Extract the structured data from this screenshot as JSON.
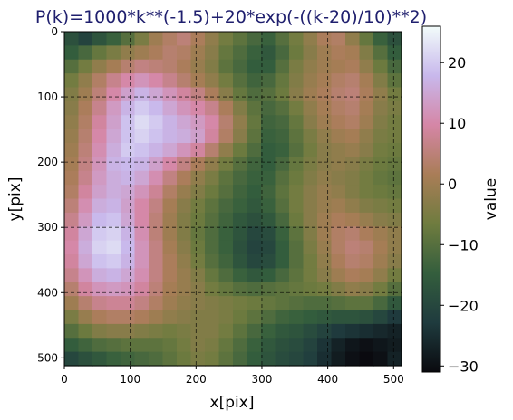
{
  "chart_data": {
    "type": "heatmap",
    "title": "P(k)=1000*k**(-1.5)+20*exp(-((k-20)/10)**2)",
    "xlabel": "x[pix]",
    "ylabel": "y[pix]",
    "xlim": [
      0,
      512
    ],
    "ylim": [
      512,
      0
    ],
    "x_ticks": [
      0,
      100,
      200,
      300,
      400,
      500
    ],
    "y_ticks": [
      0,
      100,
      200,
      300,
      400,
      500
    ],
    "grid": true,
    "colormap": "cubehelix-like",
    "colorbar": {
      "label": "value",
      "range": [
        -31,
        26
      ],
      "ticks": [
        -30,
        -20,
        -10,
        0,
        10,
        20
      ],
      "tick_labels": [
        "−30",
        "−20",
        "−10",
        "0",
        "10",
        "20"
      ],
      "colors": [
        "#0a0a0f",
        "#1f3b3e",
        "#345e3d",
        "#6f7c3f",
        "#a97d57",
        "#d586a6",
        "#c8b8ec",
        "#f2fcfa"
      ]
    },
    "grid_size": [
      24,
      24
    ],
    "values": [
      [
        -18,
        -21,
        -17,
        -14,
        -10,
        -5,
        0,
        3,
        5,
        2,
        -2,
        -6,
        -9,
        -12,
        -14,
        -10,
        -6,
        -2,
        2,
        3,
        -2,
        -8,
        -14,
        -18
      ],
      [
        -15,
        -12,
        -8,
        -5,
        -2,
        0,
        2,
        4,
        3,
        0,
        -3,
        -8,
        -11,
        -14,
        -16,
        -12,
        -7,
        -3,
        0,
        2,
        1,
        -4,
        -10,
        -15
      ],
      [
        -10,
        -6,
        -2,
        1,
        4,
        6,
        5,
        4,
        2,
        -1,
        -4,
        -9,
        -12,
        -15,
        -15,
        -10,
        -5,
        -2,
        0,
        1,
        2,
        -2,
        -7,
        -12
      ],
      [
        -6,
        -2,
        3,
        7,
        10,
        12,
        10,
        7,
        4,
        1,
        -2,
        -6,
        -10,
        -13,
        -12,
        -8,
        -4,
        -1,
        1,
        3,
        4,
        1,
        -4,
        -9
      ],
      [
        -4,
        0,
        5,
        10,
        14,
        17,
        15,
        12,
        9,
        6,
        2,
        -3,
        -8,
        -11,
        -10,
        -7,
        -3,
        0,
        2,
        4,
        5,
        2,
        -2,
        -6
      ],
      [
        -3,
        2,
        7,
        13,
        17,
        20,
        18,
        15,
        12,
        10,
        7,
        2,
        -4,
        -9,
        -12,
        -10,
        -6,
        -2,
        1,
        3,
        4,
        1,
        -3,
        -5
      ],
      [
        -2,
        3,
        9,
        14,
        19,
        22,
        20,
        17,
        15,
        13,
        10,
        4,
        -2,
        -8,
        -13,
        -12,
        -8,
        -3,
        0,
        2,
        3,
        0,
        -4,
        -6
      ],
      [
        -1,
        4,
        10,
        15,
        19,
        21,
        19,
        17,
        16,
        14,
        9,
        3,
        -3,
        -9,
        -14,
        -13,
        -9,
        -5,
        -2,
        0,
        1,
        -2,
        -5,
        -6
      ],
      [
        0,
        5,
        11,
        16,
        20,
        19,
        17,
        15,
        12,
        9,
        4,
        -2,
        -7,
        -11,
        -15,
        -14,
        -10,
        -6,
        -3,
        -2,
        -1,
        -3,
        -6,
        -7
      ],
      [
        1,
        6,
        12,
        17,
        18,
        17,
        14,
        10,
        6,
        2,
        -2,
        -6,
        -10,
        -13,
        -15,
        -12,
        -8,
        -5,
        -3,
        -2,
        -3,
        -5,
        -7,
        -8
      ],
      [
        2,
        7,
        13,
        16,
        17,
        15,
        11,
        6,
        2,
        -2,
        -5,
        -9,
        -12,
        -14,
        -14,
        -10,
        -7,
        -4,
        -2,
        -3,
        -4,
        -6,
        -8,
        -9
      ],
      [
        3,
        9,
        14,
        16,
        15,
        12,
        8,
        3,
        -1,
        -4,
        -7,
        -10,
        -13,
        -15,
        -13,
        -9,
        -6,
        -3,
        -1,
        -2,
        -4,
        -6,
        -7,
        -8
      ],
      [
        5,
        11,
        16,
        17,
        14,
        10,
        6,
        1,
        -3,
        -6,
        -9,
        -12,
        -14,
        -16,
        -14,
        -10,
        -6,
        -3,
        -1,
        0,
        -2,
        -4,
        -5,
        -6
      ],
      [
        7,
        13,
        18,
        19,
        15,
        10,
        5,
        0,
        -4,
        -7,
        -10,
        -13,
        -16,
        -18,
        -16,
        -12,
        -7,
        -3,
        0,
        2,
        1,
        -1,
        -3,
        -4
      ],
      [
        9,
        15,
        20,
        21,
        17,
        11,
        5,
        0,
        -4,
        -8,
        -11,
        -14,
        -17,
        -20,
        -19,
        -14,
        -9,
        -4,
        0,
        3,
        4,
        2,
        0,
        -2
      ],
      [
        10,
        16,
        21,
        22,
        18,
        12,
        6,
        1,
        -3,
        -7,
        -11,
        -14,
        -18,
        -21,
        -20,
        -15,
        -10,
        -5,
        -1,
        3,
        5,
        4,
        1,
        -2
      ],
      [
        9,
        15,
        19,
        20,
        17,
        12,
        6,
        2,
        -2,
        -6,
        -10,
        -13,
        -17,
        -20,
        -19,
        -15,
        -10,
        -6,
        -2,
        2,
        4,
        3,
        0,
        -3
      ],
      [
        7,
        12,
        16,
        17,
        15,
        11,
        6,
        2,
        -1,
        -4,
        -8,
        -11,
        -14,
        -16,
        -15,
        -12,
        -9,
        -6,
        -3,
        0,
        2,
        1,
        -2,
        -6
      ],
      [
        4,
        9,
        12,
        13,
        12,
        9,
        5,
        1,
        -1,
        -3,
        -6,
        -8,
        -10,
        -11,
        -10,
        -9,
        -8,
        -7,
        -6,
        -4,
        -2,
        -3,
        -6,
        -10
      ],
      [
        0,
        4,
        7,
        8,
        8,
        6,
        3,
        0,
        -2,
        -3,
        -4,
        -5,
        -6,
        -7,
        -8,
        -9,
        -10,
        -11,
        -11,
        -10,
        -9,
        -9,
        -12,
        -16
      ],
      [
        -5,
        -1,
        2,
        3,
        3,
        2,
        0,
        -2,
        -3,
        -4,
        -4,
        -5,
        -7,
        -9,
        -11,
        -13,
        -14,
        -15,
        -16,
        -17,
        -17,
        -18,
        -20,
        -23
      ],
      [
        -10,
        -7,
        -4,
        -3,
        -3,
        -4,
        -5,
        -6,
        -5,
        -4,
        -4,
        -6,
        -9,
        -12,
        -14,
        -16,
        -17,
        -19,
        -21,
        -23,
        -24,
        -25,
        -26,
        -27
      ],
      [
        -15,
        -13,
        -11,
        -10,
        -9,
        -9,
        -9,
        -8,
        -6,
        -4,
        -5,
        -8,
        -11,
        -14,
        -16,
        -18,
        -19,
        -21,
        -24,
        -27,
        -29,
        -30,
        -29,
        -28
      ],
      [
        -20,
        -18,
        -16,
        -14,
        -13,
        -12,
        -11,
        -9,
        -7,
        -5,
        -6,
        -9,
        -12,
        -15,
        -17,
        -19,
        -20,
        -22,
        -25,
        -28,
        -30,
        -31,
        -30,
        -27
      ]
    ]
  }
}
